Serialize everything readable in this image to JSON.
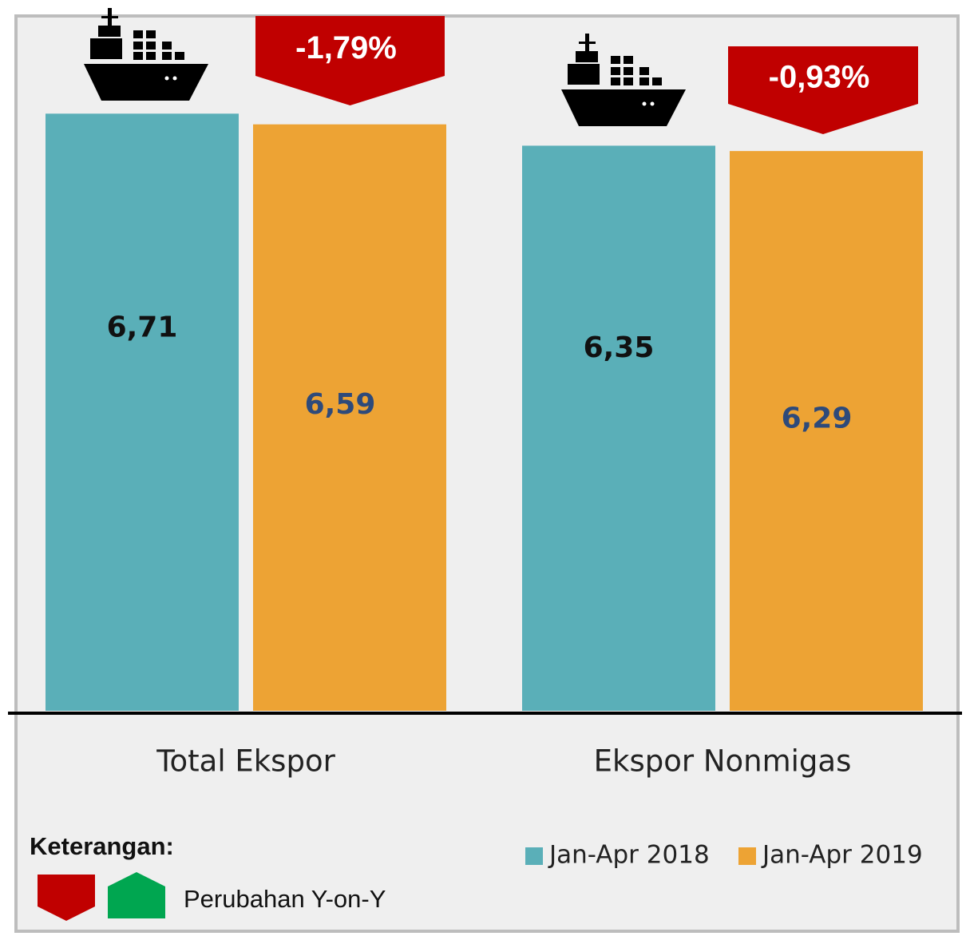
{
  "chart_data": {
    "type": "bar",
    "categories": [
      "Total Ekspor",
      "Ekspor Nonmigas"
    ],
    "series": [
      {
        "name": "Jan-Apr 2018",
        "color": "#5aafb8",
        "label_color": "#111111",
        "values": [
          6.71,
          6.35
        ],
        "value_labels": [
          "6,71",
          "6,35"
        ]
      },
      {
        "name": "Jan-Apr 2019",
        "color": "#eda334",
        "label_color": "#2e4a7a",
        "values": [
          6.59,
          6.29
        ],
        "value_labels": [
          "6,59",
          "6,29"
        ]
      }
    ],
    "ylim": [
      0,
      7
    ],
    "annotations": [
      "-1,79%",
      "-0,93%"
    ],
    "legend_note": {
      "title": "Keterangan:",
      "text": "Perubahan Y-on-Y",
      "down_color": "#c00000",
      "up_color": "#00a650"
    }
  }
}
